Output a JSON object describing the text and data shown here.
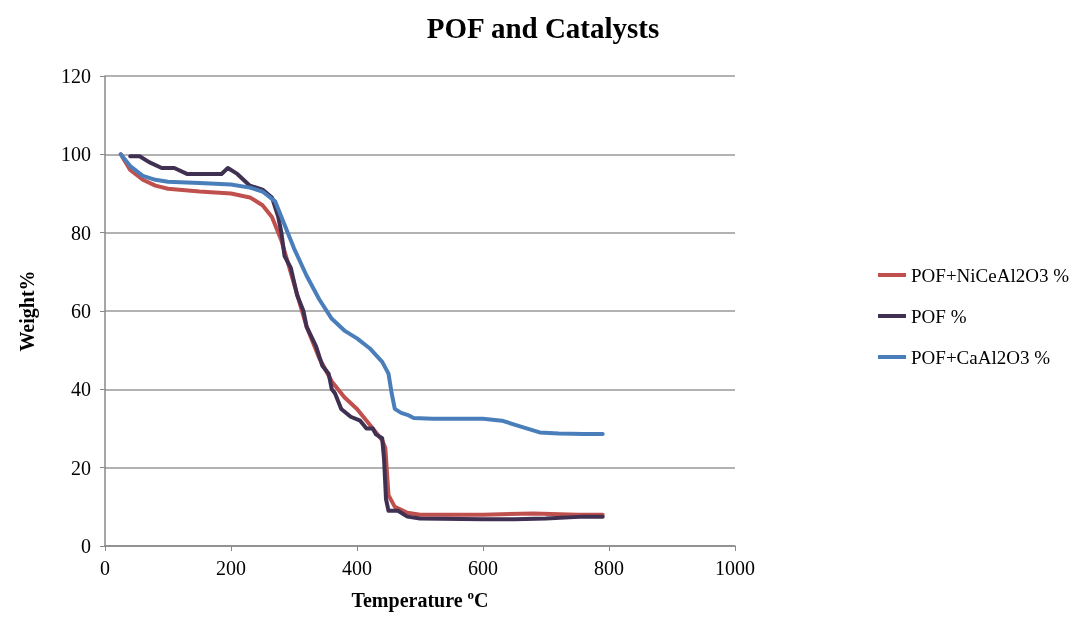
{
  "chart_data": {
    "type": "line",
    "title": "POF and Catalysts",
    "xlabel": "Temperature $^{o}$C",
    "ylabel": "Weight%",
    "xlim": [
      0,
      1000
    ],
    "xticks": [
      0,
      200,
      400,
      600,
      800,
      1000
    ],
    "ylim": [
      0,
      120
    ],
    "yticks": [
      0,
      20,
      40,
      60,
      80,
      100,
      120
    ],
    "grid": "y",
    "legend": "right",
    "marker": "none",
    "line_style": "solid",
    "series": [
      {
        "name": "POF+NiCeAl2O3 %",
        "color": "#c0504d",
        "x": [
          25,
          40,
          60,
          80,
          100,
          150,
          200,
          230,
          250,
          265,
          280,
          300,
          320,
          340,
          360,
          380,
          400,
          420,
          440,
          445,
          450,
          460,
          480,
          500,
          600,
          680,
          750,
          790
        ],
        "values": [
          100,
          96,
          93.5,
          92,
          91.2,
          90.5,
          90,
          89,
          87,
          84,
          78,
          67,
          56,
          48,
          42,
          38,
          35,
          31,
          27,
          25,
          13,
          10,
          8.5,
          8,
          8,
          8.3,
          8,
          8
        ]
      },
      {
        "name": "POF %",
        "color": "#403152",
        "x": [
          40,
          55,
          70,
          90,
          110,
          130,
          160,
          185,
          195,
          210,
          230,
          250,
          265,
          275,
          280,
          285,
          295,
          305,
          315,
          320,
          335,
          345,
          355,
          360,
          365,
          375,
          390,
          405,
          415,
          425,
          430,
          440,
          443,
          446,
          450,
          465,
          480,
          500,
          600,
          650,
          700,
          760,
          790
        ],
        "values": [
          99.5,
          99.5,
          98,
          96.5,
          96.5,
          95,
          95,
          95,
          96.5,
          95,
          92,
          91,
          89,
          84,
          80,
          74,
          71,
          64,
          60,
          56,
          51,
          46,
          44,
          40,
          39,
          35,
          33,
          32,
          30,
          30,
          28.5,
          27.5,
          22,
          12,
          9,
          9,
          7.5,
          7,
          6.8,
          6.8,
          7,
          7.5,
          7.5
        ]
      },
      {
        "name": "POF+CaAl2O3 %",
        "color": "#4a7ebb",
        "x": [
          25,
          40,
          60,
          80,
          100,
          150,
          200,
          230,
          250,
          270,
          285,
          300,
          320,
          340,
          360,
          380,
          400,
          420,
          440,
          450,
          455,
          460,
          470,
          480,
          490,
          520,
          600,
          630,
          660,
          690,
          720,
          760,
          790
        ],
        "values": [
          100,
          97,
          94.5,
          93.5,
          93,
          92.7,
          92.3,
          91.5,
          90.5,
          88,
          82,
          76,
          69,
          63,
          58,
          55,
          53,
          50.5,
          47,
          44,
          39,
          35,
          34,
          33.5,
          32.7,
          32.5,
          32.5,
          32,
          30.5,
          29,
          28.7,
          28.6,
          28.6
        ]
      }
    ]
  }
}
